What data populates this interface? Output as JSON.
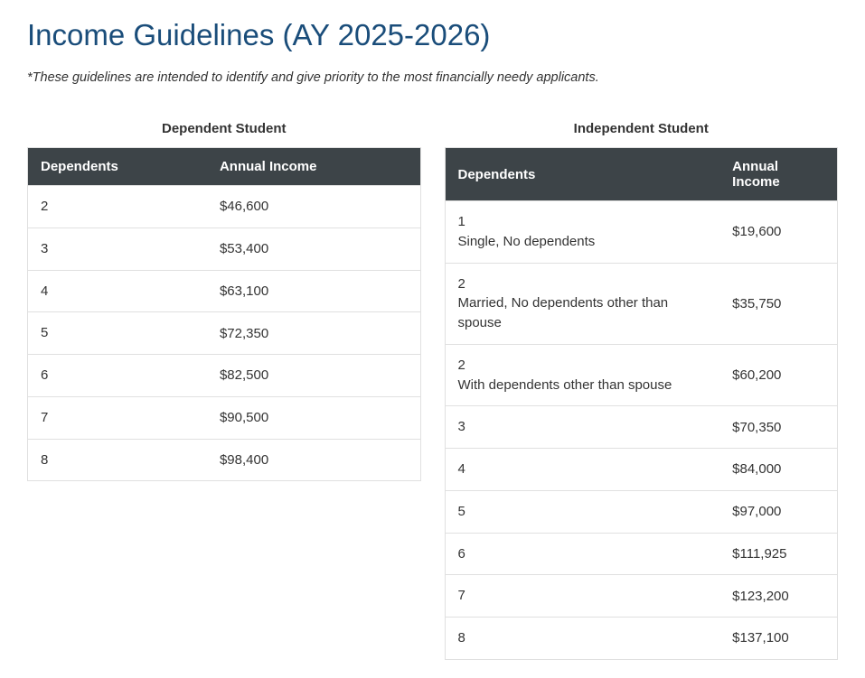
{
  "title": "Income Guidelines (AY 2025-2026)",
  "subtitle": "*These guidelines are intended to identify and give priority to the most financially needy applicants.",
  "header_color": "#3d4448",
  "title_color": "#1a4d7a",
  "border_color": "#e0e0e0",
  "tables": {
    "dependent": {
      "caption": "Dependent Student",
      "columns": [
        "Dependents",
        "Annual Income"
      ],
      "rows": [
        {
          "dep": "2",
          "income": "$46,600"
        },
        {
          "dep": "3",
          "income": "$53,400"
        },
        {
          "dep": "4",
          "income": "$63,100"
        },
        {
          "dep": "5",
          "income": "$72,350"
        },
        {
          "dep": "6",
          "income": "$82,500"
        },
        {
          "dep": "7",
          "income": "$90,500"
        },
        {
          "dep": "8",
          "income": "$98,400"
        }
      ]
    },
    "independent": {
      "caption": "Independent Student",
      "columns": [
        "Dependents",
        "Annual Income"
      ],
      "rows": [
        {
          "dep": "1",
          "desc": "Single, No dependents",
          "income": "$19,600"
        },
        {
          "dep": "2",
          "desc": "Married, No dependents other than spouse",
          "income": "$35,750"
        },
        {
          "dep": "2",
          "desc": "With dependents other than spouse",
          "income": "$60,200"
        },
        {
          "dep": "3",
          "income": "$70,350"
        },
        {
          "dep": "4",
          "income": "$84,000"
        },
        {
          "dep": "5",
          "income": "$97,000"
        },
        {
          "dep": "6",
          "income": "$111,925"
        },
        {
          "dep": "7",
          "income": "$123,200"
        },
        {
          "dep": "8",
          "income": "$137,100"
        }
      ]
    }
  }
}
